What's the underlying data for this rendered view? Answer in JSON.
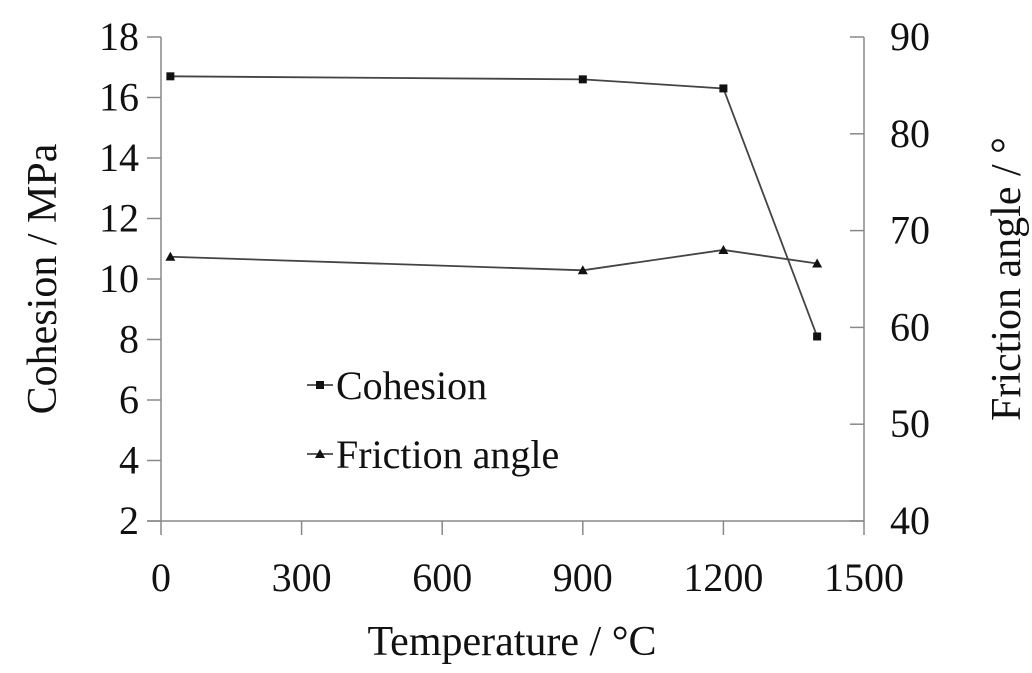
{
  "chart_data": {
    "type": "line",
    "title": "",
    "xlabel": "Temperature / °C",
    "ylabel": "Cohesion / MPa",
    "y2label": "Friction angle / °",
    "xlim": [
      0,
      1500
    ],
    "ylim": [
      2,
      18
    ],
    "y2lim": [
      40,
      90
    ],
    "xticks": [
      0,
      300,
      600,
      900,
      1200,
      1500
    ],
    "yticks": [
      2,
      4,
      6,
      8,
      10,
      12,
      14,
      16,
      18
    ],
    "y2ticks": [
      40,
      50,
      60,
      70,
      80,
      90
    ],
    "grid": false,
    "legend_position": "inside-lower-left",
    "x": [
      20,
      900,
      1200,
      1400
    ],
    "series": [
      {
        "name": "Cohesion",
        "axis": "left",
        "marker": "square",
        "values": [
          16.7,
          16.6,
          16.3,
          8.1
        ]
      },
      {
        "name": "Friction angle",
        "axis": "right",
        "marker": "triangle",
        "values": [
          67.3,
          65.9,
          68.0,
          66.6
        ]
      }
    ]
  }
}
